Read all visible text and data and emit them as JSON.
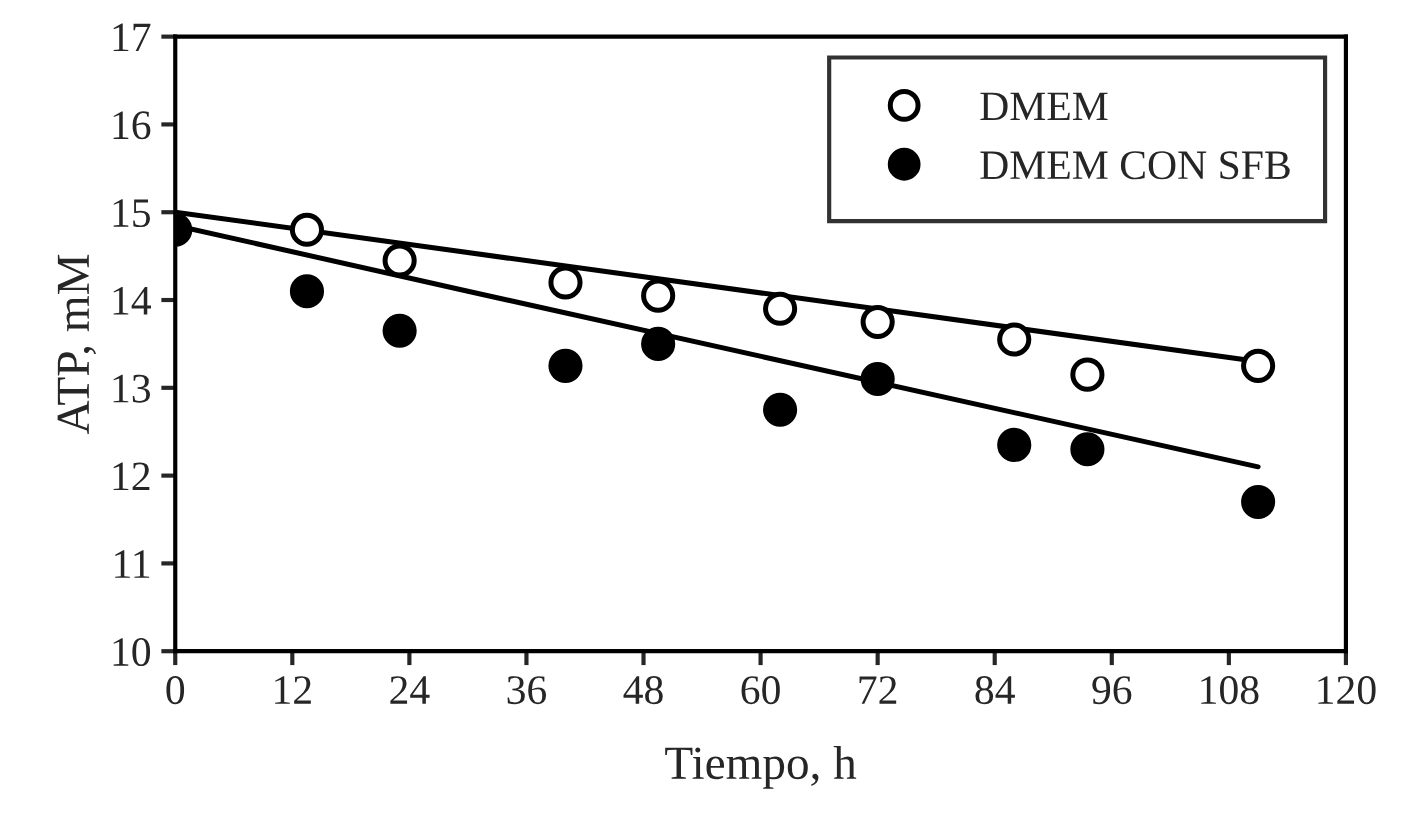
{
  "chart_data": {
    "type": "scatter",
    "xlabel": "Tiempo, h",
    "ylabel": "ATP, mM",
    "xlim": [
      0,
      120
    ],
    "xticks": [
      0,
      12,
      24,
      36,
      48,
      60,
      72,
      84,
      96,
      108,
      120
    ],
    "ylim": [
      10,
      17
    ],
    "yticks": [
      10,
      11,
      12,
      13,
      14,
      15,
      16,
      17
    ],
    "grid": false,
    "legend": "top right",
    "series": [
      {
        "name": "DMEM",
        "marker": "circle",
        "color": "#ffffff",
        "x": [
          13.5,
          23,
          40,
          49.5,
          62,
          72,
          86,
          93.5,
          111
        ],
        "values": [
          14.8,
          14.45,
          14.2,
          14.05,
          13.9,
          13.75,
          13.55,
          13.15,
          13.25
        ]
      },
      {
        "name": "DMEM CON SFB",
        "marker": "circle",
        "color": "#000000",
        "x": [
          0,
          13.5,
          23,
          40,
          49.5,
          62,
          72,
          86,
          93.5,
          111
        ],
        "values": [
          14.8,
          14.1,
          13.65,
          13.25,
          13.5,
          12.75,
          13.1,
          12.35,
          12.3,
          11.7
        ]
      },
      {
        "type": "line",
        "color": "#000000",
        "line_style": "solid",
        "x": [
          0,
          111
        ],
        "values": [
          15.0,
          13.3
        ]
      },
      {
        "type": "line",
        "color": "#000000",
        "line_style": "solid",
        "x": [
          0,
          30,
          111
        ],
        "values": [
          14.85,
          14.1,
          12.1
        ]
      }
    ]
  }
}
